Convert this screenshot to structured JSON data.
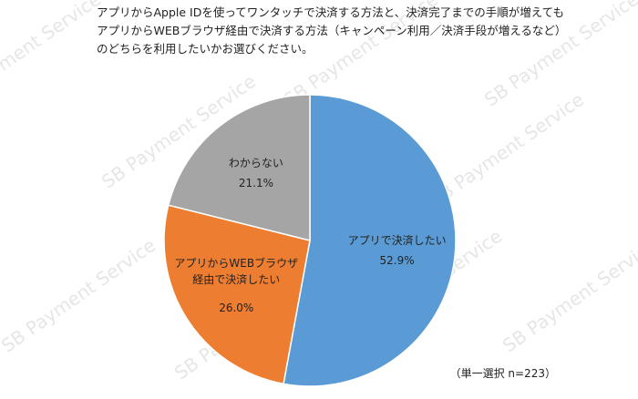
{
  "chart_data": {
    "type": "pie",
    "title": "アプリからApple IDを使ってワンタッチで決済する方法と、決済完了までの手順が増えても\nアプリからWEBブラウザ経由で決済する方法（キャンペーン利用／決済手段が増えるなど）\nのどちらを利用したいかお選びください。",
    "categories": [
      "アプリで決済したい",
      "アプリからWEBブラウザ\n経由で決済したい",
      "わからない"
    ],
    "values": [
      52.9,
      26.0,
      21.1
    ],
    "value_labels": [
      "52.9%",
      "26.0%",
      "21.1%"
    ],
    "colors": [
      "#5b9bd5",
      "#ed7d31",
      "#a5a5a5"
    ],
    "annotation": "（単一選択 n=223）",
    "watermark": "SB Payment Service"
  }
}
